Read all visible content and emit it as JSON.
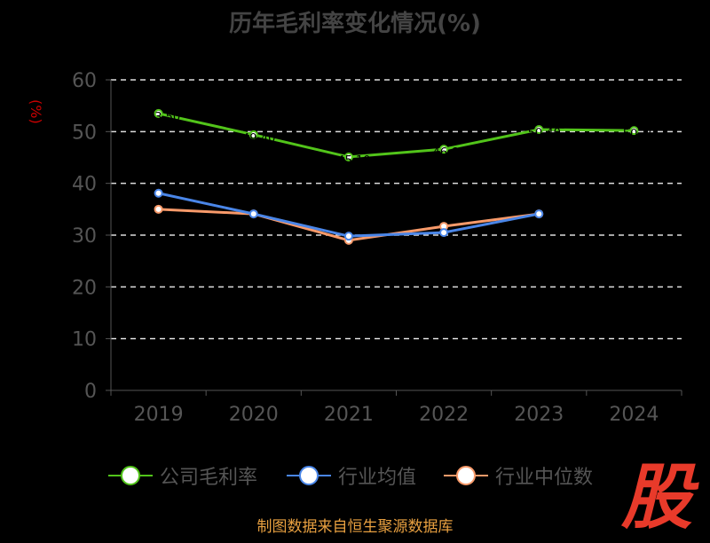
{
  "chart_data": {
    "type": "line",
    "title": "历年毛利率变化情况(%)",
    "ylabel": "(%)",
    "xlabel": "",
    "categories": [
      "2019",
      "2020",
      "2021",
      "2022",
      "2023",
      "2024"
    ],
    "ylim": [
      0,
      60
    ],
    "yticks": [
      "0",
      "10",
      "20",
      "30",
      "40",
      "50",
      "60"
    ],
    "grid": true,
    "legend_position": "bottom",
    "series": [
      {
        "name": "公司毛利率",
        "color": "#52c41a",
        "values": [
          53.5,
          49.4,
          45.1,
          46.6,
          50.4,
          50.2
        ]
      },
      {
        "name": "行业均值",
        "color": "#4a86e8",
        "values": [
          38.1,
          34.1,
          29.8,
          30.5,
          34.1,
          null
        ]
      },
      {
        "name": "行业中位数",
        "color": "#f89a6a",
        "values": [
          35.0,
          34.1,
          29.0,
          31.7,
          34.1,
          null
        ]
      }
    ]
  },
  "source": "制图数据来自恒生聚源数据库",
  "logo": "股"
}
